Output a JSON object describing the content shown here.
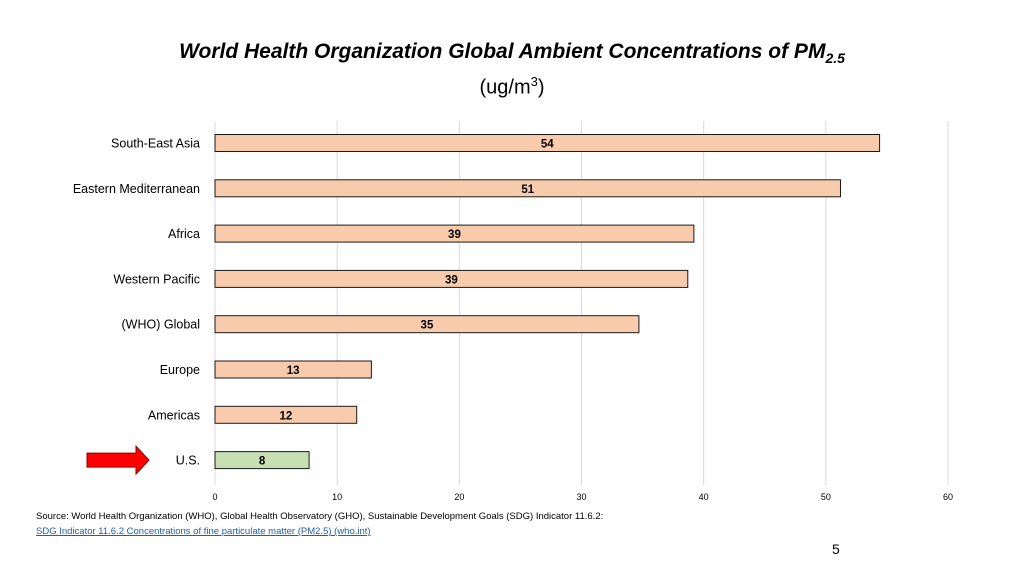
{
  "slide": {
    "title_main": "World Health Organization Global Ambient Concentrations of PM",
    "title_sub": "2.5",
    "unit_base": "(ug/m",
    "unit_sup": "3",
    "unit_end": ")",
    "source_text": "Source:  World Health Organization (WHO), Global Health Observatory (GHO), Sustainable Development Goals (SDG) Indicator 11.6.2:",
    "source_link": "SDG Indicator 11.6.2 Concentrations of fine particulate matter (PM2.5) (who.int)",
    "page_number": "5"
  },
  "colors": {
    "bar_default": "#f8cbad",
    "bar_highlight": "#c6e0b4",
    "bar_stroke": "#1a1a1a",
    "grid": "#d9d9d9",
    "arrow": "#ff0000",
    "arrow_stroke": "#8b0000"
  },
  "chart_data": {
    "type": "bar",
    "orientation": "horizontal",
    "categories": [
      "South-East Asia",
      "Eastern Mediterranean",
      "Africa",
      "Western Pacific",
      "(WHO) Global",
      "Europe",
      "Americas",
      "U.S."
    ],
    "values": [
      54.4,
      51.2,
      39.2,
      38.7,
      34.7,
      12.8,
      11.6,
      7.7
    ],
    "data_labels": [
      "54",
      "51",
      "39",
      "39",
      "35",
      "13",
      "12",
      "8"
    ],
    "highlight": "U.S.",
    "xlim": [
      0,
      60
    ],
    "xticks": [
      0,
      10,
      20,
      30,
      40,
      50,
      60
    ],
    "grid": true,
    "annotation": "red-arrow-pointing-to-U.S."
  }
}
